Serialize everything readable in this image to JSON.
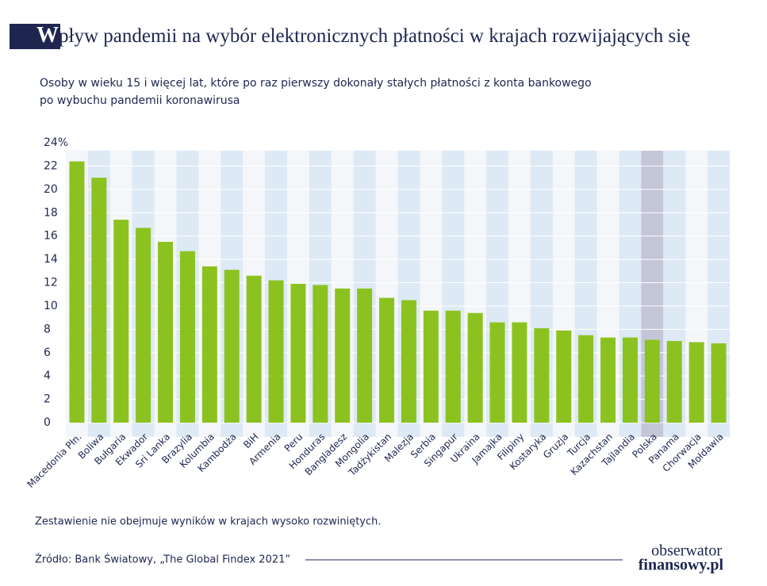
{
  "chart_data": {
    "type": "bar",
    "title": "Wpływ pandemii na wybór elektronicznych płatności w krajach rozwijających się",
    "subtitle": [
      "Osoby w wieku 15 i więcej lat, które po raz pierwszy dokonały stałych płatności z konta bankowego",
      "po wybuchu pandemii koronawirusa"
    ],
    "categories": [
      "Macedonia Płn.",
      "Boliwa",
      "Bułgaria",
      "Ekwador",
      "Sri Lanka",
      "Brazylia",
      "Kolumbia",
      "Kambodża",
      "BiH",
      "Armenia",
      "Peru",
      "Honduras",
      "Bangladesz",
      "Mongolia",
      "Tadżykistan",
      "Malezja",
      "Serbia",
      "Singapur",
      "Ukraina",
      "Jamajka",
      "Filipiny",
      "Kostaryka",
      "Gruzja",
      "Turcja",
      "Kazachstan",
      "Tajlandia",
      "Polska",
      "Panama",
      "Chorwacja",
      "Mołdawia"
    ],
    "values": [
      22.4,
      21.0,
      17.4,
      16.7,
      15.5,
      14.7,
      13.4,
      13.1,
      12.6,
      12.2,
      11.9,
      11.8,
      11.5,
      11.5,
      10.7,
      10.5,
      9.6,
      9.6,
      9.4,
      8.6,
      8.6,
      8.1,
      7.9,
      7.5,
      7.3,
      7.3,
      7.1,
      7.0,
      6.9,
      6.8
    ],
    "color": "#8cc21f",
    "highlight": 26,
    "highlight_color": "#c5c5d8",
    "ylim": [
      0,
      24
    ],
    "yticks": [
      0,
      2,
      4,
      6,
      8,
      10,
      12,
      14,
      16,
      18,
      20,
      22,
      {
        "value": 24,
        "label": "24%"
      }
    ],
    "grid": true,
    "note": "Zestawienie nie obejmuje wyników w krajach wysoko rozwiniętych.",
    "source": "Źródło: Bank Światowy, „The Global Findex 2021”"
  },
  "logo": [
    "obserwator",
    "finansowy.pl"
  ]
}
